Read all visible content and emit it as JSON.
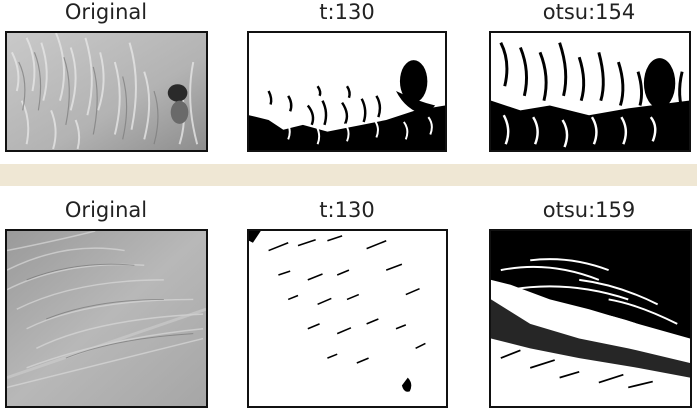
{
  "rows": [
    {
      "panels": [
        {
          "title": "Original",
          "kind": "grayscale-photo-dog"
        },
        {
          "title": "t:130",
          "kind": "threshold-dog-130"
        },
        {
          "title": "otsu:154",
          "kind": "threshold-dog-otsu"
        }
      ]
    },
    {
      "panels": [
        {
          "title": "Original",
          "kind": "grayscale-photo-fur"
        },
        {
          "title": "t:130",
          "kind": "threshold-fur-130"
        },
        {
          "title": "otsu:159",
          "kind": "threshold-fur-otsu"
        }
      ]
    }
  ],
  "colors": {
    "separator": "#efe7d4",
    "frame": "#111111"
  }
}
